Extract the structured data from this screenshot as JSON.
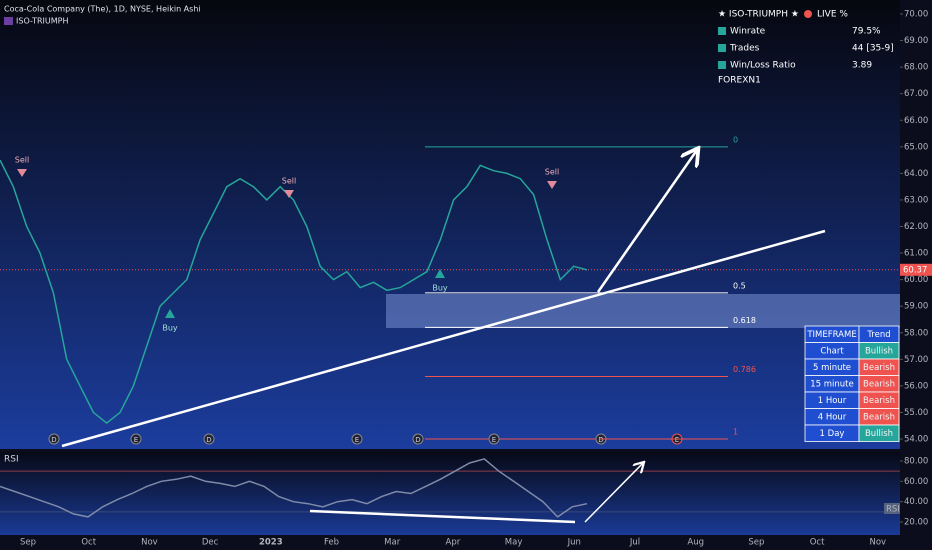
{
  "header": {
    "symbol": "Coca-Cola Company (The), 1D, NYSE, Heikin Ashi",
    "indicator": "ISO-TRIUMPH"
  },
  "panel": {
    "title": "★ ISO-TRIUMPH ★",
    "live": "LIVE %",
    "rows": [
      [
        "Winrate",
        "79.5%"
      ],
      [
        "Trades",
        "44 [35-9]"
      ],
      [
        "Win/Loss Ratio",
        "3.89"
      ]
    ],
    "footer": "FOREXN1"
  },
  "trend_table": {
    "header": [
      "TIMEFRAME",
      "Trend"
    ],
    "rows": [
      [
        "Chart",
        "Bullish"
      ],
      [
        "5 minute",
        "Bearish"
      ],
      [
        "15 minute",
        "Bearish"
      ],
      [
        "1 Hour",
        "Bearish"
      ],
      [
        "4 Hour",
        "Bearish"
      ],
      [
        "1 Day",
        "Bullish"
      ]
    ],
    "colors": [
      "#26a69a",
      "#ef5350",
      "#ef5350",
      "#ef5350",
      "#ef5350",
      "#26a69a"
    ]
  },
  "signals": [
    "Sell",
    "Buy",
    "Sell",
    "Buy",
    "Sell"
  ],
  "events": [
    "D",
    "E",
    "D",
    "E",
    "D",
    "E",
    "D",
    "E"
  ],
  "x_labels": [
    "Sep",
    "Oct",
    "Nov",
    "Dec",
    "2023",
    "Feb",
    "Mar",
    "Apr",
    "May",
    "Jun",
    "Jul",
    "Aug",
    "Sep",
    "Oct",
    "Nov"
  ],
  "chart_data": [
    {
      "type": "line",
      "color": "#26a69a",
      "values": [
        64.5,
        63.5,
        62,
        61,
        59.5,
        57,
        56,
        55,
        54.6,
        55,
        56,
        57.5,
        59,
        59.5,
        60,
        61.5,
        62.5,
        63.5,
        63.8,
        63.5,
        63,
        63.5,
        63,
        62,
        60.5,
        60,
        60.3,
        59.7,
        59.9,
        59.6,
        59.7,
        60,
        60.3,
        61.5,
        63,
        63.5,
        64.3,
        64.1,
        64,
        63.8,
        63.2,
        61.5,
        60,
        60.5,
        60.37
      ],
      "ylim": [
        54,
        70
      ],
      "yticks": [
        {
          "value": 54,
          "label": "54.00"
        },
        {
          "value": 55,
          "label": "55.00"
        },
        {
          "value": 56,
          "label": "56.00"
        },
        {
          "value": 57,
          "label": "57.00"
        },
        {
          "value": 58,
          "label": "58.00"
        },
        {
          "value": 59,
          "label": "59.00"
        },
        {
          "value": 60,
          "label": "60.00"
        },
        {
          "value": 61,
          "label": "61.00"
        },
        {
          "value": 62,
          "label": "62.00"
        },
        {
          "value": 63,
          "label": "63.00"
        },
        {
          "value": 64,
          "label": "64.00"
        },
        {
          "value": 65,
          "label": "65.00"
        },
        {
          "value": 66,
          "label": "66.00"
        },
        {
          "value": 67,
          "label": "67.00"
        },
        {
          "value": 68,
          "label": "68.00"
        },
        {
          "value": 69,
          "label": "69.00"
        },
        {
          "value": 70,
          "label": "70.00"
        }
      ],
      "last_price": 60.37,
      "fib_levels": [
        0,
        0.5,
        0.618,
        0.786,
        1
      ],
      "fib_colors": [
        "#26a69a",
        "#ffffff",
        "#ffffff",
        "#ef5350",
        "#ef5350"
      ],
      "fib_range": [
        65,
        54
      ]
    },
    {
      "type": "line",
      "title": "RSI",
      "tag": "RSI",
      "color": "#7e8ba8",
      "values": [
        55,
        50,
        45,
        40,
        35,
        28,
        25,
        35,
        42,
        48,
        55,
        60,
        62,
        65,
        60,
        58,
        55,
        60,
        55,
        45,
        40,
        38,
        35,
        40,
        42,
        38,
        45,
        50,
        48,
        55,
        62,
        70,
        78,
        82,
        70,
        60,
        50,
        40,
        25,
        35,
        38
      ],
      "ylim": [
        10,
        90
      ],
      "yticks": [
        {
          "value": 20,
          "label": "20.00"
        },
        {
          "value": 40,
          "label": "40.00"
        },
        {
          "value": 60,
          "label": "60.00"
        },
        {
          "value": 80,
          "label": "80.00"
        }
      ],
      "levels": [
        70,
        30
      ]
    }
  ]
}
